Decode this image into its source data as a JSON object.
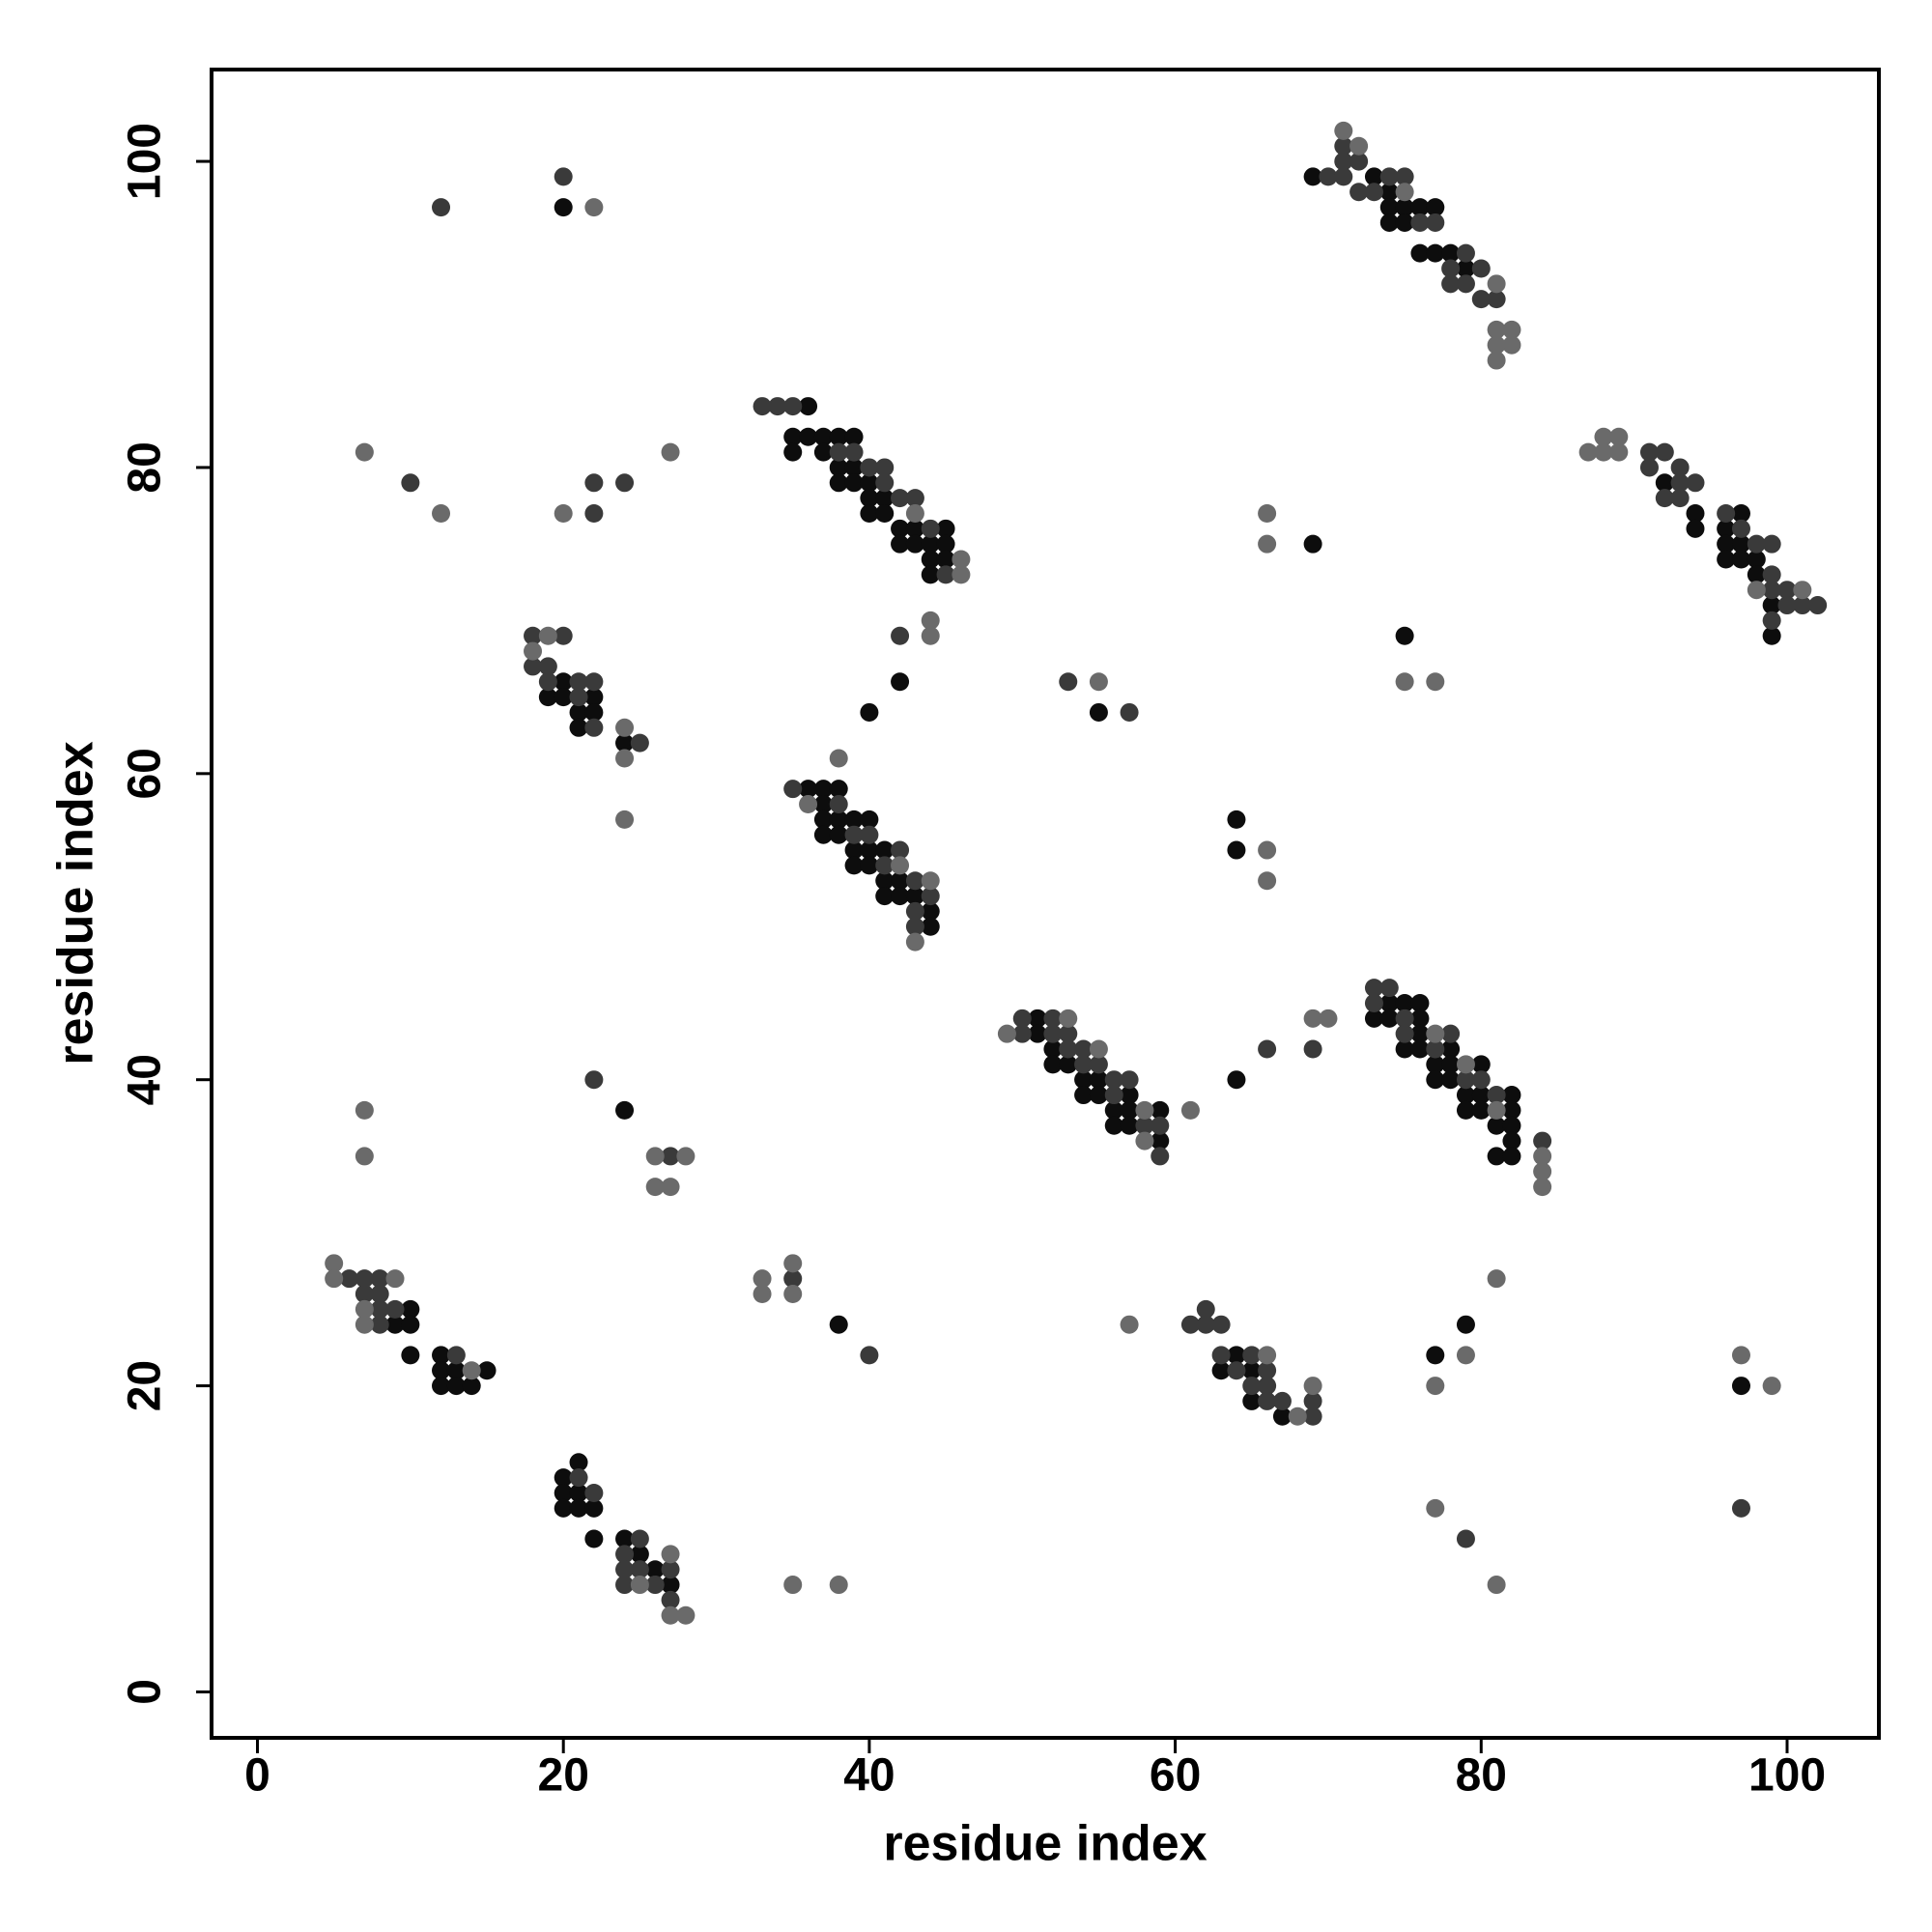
{
  "chart_data": {
    "type": "scatter",
    "x_label": "residue index",
    "y_label": "residue index",
    "xlim": [
      -3,
      106
    ],
    "ylim": [
      -3,
      106
    ],
    "xticks": [
      0,
      20,
      40,
      60,
      80,
      100
    ],
    "yticks": [
      0,
      20,
      40,
      60,
      80,
      100
    ],
    "series": [
      {
        "color": "#0d0d0d",
        "x": [
          9,
          10,
          10,
          10,
          12,
          12,
          12,
          13,
          13,
          14,
          15,
          20,
          20,
          20,
          21,
          21,
          21,
          22,
          22,
          24,
          25,
          26,
          27,
          24,
          38,
          63,
          64,
          65,
          65,
          67,
          77,
          79,
          97,
          51,
          51,
          52,
          52,
          53,
          54,
          54,
          55,
          55,
          56,
          56,
          57,
          57,
          57,
          59,
          59,
          64,
          73,
          74,
          74,
          75,
          75,
          76,
          76,
          76,
          76,
          77,
          77,
          78,
          78,
          78,
          79,
          79,
          80,
          80,
          80,
          81,
          81,
          82,
          82,
          82,
          82,
          82,
          64,
          64,
          55,
          75,
          69,
          36,
          37,
          37,
          37,
          37,
          38,
          38,
          38,
          39,
          39,
          39,
          40,
          40,
          40,
          41,
          41,
          41,
          42,
          42,
          43,
          44,
          44,
          19,
          20,
          20,
          21,
          21,
          22,
          22,
          24,
          40,
          42,
          36,
          35,
          35,
          36,
          37,
          37,
          38,
          38,
          38,
          39,
          39,
          39,
          40,
          40,
          40,
          41,
          41,
          42,
          42,
          43,
          43,
          44,
          44,
          44,
          45,
          45,
          45,
          20,
          69,
          73,
          74,
          74,
          74,
          75,
          75,
          76,
          77,
          76,
          77,
          78,
          79,
          92,
          94,
          94,
          96,
          96,
          96,
          97,
          97,
          97,
          98,
          98,
          99,
          99
        ],
        "values": [
          24,
          25,
          24,
          22,
          22,
          21,
          20,
          21,
          20,
          20,
          21,
          14,
          13,
          12,
          15,
          13,
          12,
          12,
          10,
          10,
          9,
          8,
          7,
          38,
          24,
          21,
          22,
          21,
          19,
          18,
          22,
          24,
          20,
          44,
          43,
          42,
          41,
          41,
          40,
          39,
          40,
          39,
          38,
          37,
          39,
          38,
          37,
          38,
          36,
          40,
          44,
          45,
          44,
          45,
          42,
          45,
          44,
          43,
          42,
          41,
          40,
          42,
          41,
          40,
          39,
          38,
          41,
          39,
          38,
          37,
          35,
          39,
          38,
          37,
          36,
          35,
          57,
          55,
          64,
          69,
          75,
          59,
          59,
          58,
          57,
          56,
          59,
          57,
          56,
          57,
          55,
          54,
          57,
          55,
          54,
          55,
          53,
          52,
          53,
          52,
          52,
          51,
          50,
          65,
          66,
          65,
          64,
          63,
          65,
          64,
          62,
          64,
          66,
          84,
          82,
          81,
          82,
          82,
          81,
          82,
          80,
          79,
          82,
          80,
          79,
          79,
          78,
          77,
          78,
          77,
          76,
          75,
          76,
          75,
          75,
          74,
          73,
          76,
          75,
          74,
          97,
          99,
          99,
          98,
          97,
          96,
          97,
          96,
          97,
          97,
          94,
          94,
          94,
          93,
          79,
          77,
          76,
          76,
          75,
          74,
          77,
          75,
          74,
          74,
          73,
          71,
          69
        ]
      },
      {
        "color": "#3a3a3a",
        "x": [
          6,
          7,
          7,
          8,
          8,
          8,
          8,
          9,
          13,
          21,
          22,
          24,
          24,
          24,
          25,
          25,
          26,
          27,
          27,
          22,
          27,
          35,
          40,
          61,
          62,
          62,
          63,
          63,
          64,
          65,
          65,
          66,
          66,
          66,
          67,
          69,
          69,
          79,
          97,
          50,
          50,
          52,
          52,
          53,
          53,
          54,
          54,
          55,
          56,
          56,
          57,
          58,
          59,
          59,
          66,
          69,
          73,
          73,
          74,
          75,
          75,
          77,
          78,
          79,
          80,
          81,
          84,
          53,
          57,
          35,
          38,
          39,
          40,
          41,
          42,
          43,
          43,
          43,
          44,
          18,
          18,
          19,
          19,
          20,
          21,
          21,
          22,
          22,
          25,
          42,
          33,
          34,
          35,
          38,
          39,
          40,
          41,
          41,
          42,
          43,
          44,
          45,
          10,
          22,
          22,
          24,
          12,
          20,
          70,
          71,
          71,
          71,
          72,
          72,
          73,
          74,
          75,
          76,
          77,
          78,
          78,
          79,
          79,
          80,
          80,
          81,
          91,
          91,
          92,
          92,
          93,
          93,
          93,
          94,
          96,
          97,
          98,
          99,
          99,
          99,
          99,
          100,
          100,
          101,
          102
        ],
        "values": [
          27,
          27,
          26,
          27,
          26,
          25,
          24,
          25,
          22,
          14,
          13,
          9,
          8,
          7,
          10,
          8,
          7,
          8,
          6,
          40,
          35,
          27,
          22,
          24,
          25,
          24,
          24,
          22,
          21,
          22,
          20,
          21,
          20,
          19,
          19,
          19,
          18,
          10,
          12,
          44,
          43,
          44,
          43,
          43,
          42,
          42,
          41,
          41,
          40,
          39,
          40,
          37,
          37,
          35,
          42,
          42,
          46,
          45,
          46,
          44,
          43,
          42,
          43,
          40,
          40,
          39,
          36,
          66,
          64,
          59,
          58,
          56,
          56,
          54,
          55,
          53,
          51,
          50,
          52,
          69,
          67,
          67,
          66,
          69,
          66,
          65,
          66,
          63,
          62,
          69,
          84,
          84,
          84,
          81,
          81,
          80,
          80,
          79,
          78,
          78,
          76,
          73,
          79,
          79,
          77,
          79,
          97,
          99,
          99,
          101,
          100,
          99,
          100,
          98,
          98,
          99,
          99,
          96,
          96,
          93,
          92,
          94,
          92,
          93,
          91,
          91,
          81,
          80,
          81,
          78,
          80,
          79,
          78,
          79,
          77,
          76,
          75,
          75,
          73,
          72,
          70,
          72,
          71,
          71,
          71
        ]
      },
      {
        "color": "#6a6a6a",
        "x": [
          5,
          5,
          7,
          7,
          9,
          14,
          25,
          27,
          27,
          28,
          7,
          7,
          26,
          26,
          27,
          28,
          33,
          33,
          35,
          35,
          35,
          38,
          66,
          68,
          69,
          57,
          77,
          79,
          81,
          77,
          81,
          97,
          99,
          49,
          53,
          55,
          58,
          58,
          61,
          69,
          70,
          77,
          79,
          81,
          84,
          84,
          84,
          66,
          66,
          55,
          75,
          77,
          66,
          66,
          36,
          38,
          42,
          43,
          44,
          18,
          19,
          24,
          24,
          24,
          44,
          44,
          43,
          46,
          46,
          7,
          12,
          20,
          27,
          22,
          71,
          72,
          75,
          81,
          81,
          81,
          81,
          82,
          82,
          87,
          88,
          88,
          89,
          89,
          98,
          101
        ],
        "values": [
          28,
          27,
          25,
          24,
          27,
          21,
          7,
          9,
          5,
          5,
          38,
          35,
          35,
          33,
          33,
          35,
          27,
          26,
          28,
          26,
          7,
          7,
          22,
          18,
          20,
          24,
          20,
          22,
          27,
          12,
          7,
          22,
          20,
          43,
          44,
          42,
          38,
          36,
          38,
          44,
          44,
          43,
          41,
          38,
          35,
          34,
          33,
          55,
          53,
          66,
          66,
          66,
          77,
          75,
          58,
          61,
          54,
          49,
          53,
          68,
          69,
          63,
          61,
          57,
          70,
          69,
          77,
          74,
          73,
          81,
          77,
          77,
          81,
          97,
          102,
          101,
          98,
          92,
          89,
          88,
          87,
          89,
          88,
          81,
          82,
          81,
          82,
          81,
          72,
          72
        ]
      }
    ]
  }
}
